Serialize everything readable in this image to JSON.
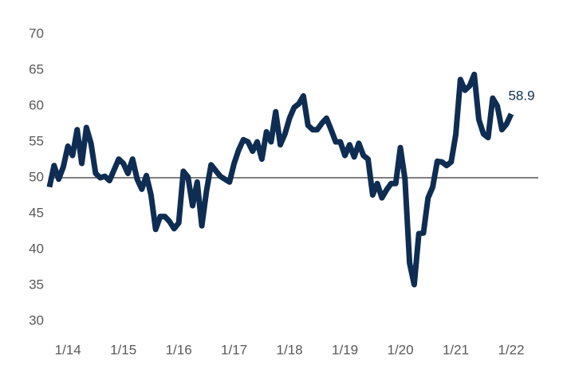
{
  "chart_data": {
    "type": "line",
    "categories": [
      null,
      null,
      null,
      null,
      "1/14",
      null,
      null,
      null,
      null,
      null,
      null,
      null,
      null,
      null,
      null,
      null,
      "1/15",
      null,
      null,
      null,
      null,
      null,
      null,
      null,
      null,
      null,
      null,
      null,
      "1/16",
      null,
      null,
      null,
      null,
      null,
      null,
      null,
      null,
      null,
      null,
      null,
      "1/17",
      null,
      null,
      null,
      null,
      null,
      null,
      null,
      null,
      null,
      null,
      null,
      "1/18",
      null,
      null,
      null,
      null,
      null,
      null,
      null,
      null,
      null,
      null,
      null,
      "1/19",
      null,
      null,
      null,
      null,
      null,
      null,
      null,
      null,
      null,
      null,
      null,
      "1/20",
      null,
      null,
      null,
      null,
      null,
      null,
      null,
      null,
      null,
      null,
      null,
      "1/21",
      null,
      null,
      null,
      null,
      null,
      null,
      null,
      null,
      null,
      null,
      null,
      "1/22"
    ],
    "values": [
      48.7,
      51.7,
      49.8,
      51.5,
      54.4,
      53.1,
      56.7,
      52,
      57,
      54.8,
      50.6,
      50,
      50.2,
      49.6,
      51.1,
      52.6,
      52,
      50.6,
      52.6,
      49.8,
      48.4,
      50.3,
      47.6,
      42.8,
      44.6,
      44.6,
      43.9,
      42.9,
      43.7,
      50.9,
      50.1,
      46.1,
      49.4,
      43.3,
      48.1,
      51.8,
      51,
      50.2,
      49.8,
      49.4,
      52,
      53.9,
      55.3,
      55,
      53.7,
      55,
      52.6,
      56.4,
      55,
      59.2,
      54.6,
      56.1,
      58.3,
      59.8,
      60.3,
      61.4,
      57.3,
      56.7,
      56.7,
      57.6,
      58.3,
      56.7,
      55,
      55,
      53.1,
      54.6,
      52.9,
      54.8,
      53.1,
      52.6,
      47.6,
      49.2,
      47.2,
      48.3,
      49.2,
      49.2,
      54.2,
      49.8,
      38.1,
      35.1,
      42.2,
      42.3,
      47.2,
      48.7,
      52.3,
      52.2,
      51.7,
      52.2,
      56,
      63.7,
      62.2,
      62.8,
      64.4,
      58.1,
      56.1,
      55.6,
      61.1,
      60,
      56.7,
      57.5,
      58.9
    ],
    "color": "#0f2d52",
    "ylim": [
      30,
      70
    ],
    "yticks": [
      30,
      35,
      40,
      45,
      50,
      55,
      60,
      65,
      70
    ],
    "reference_line": 50,
    "grid": false
  }
}
